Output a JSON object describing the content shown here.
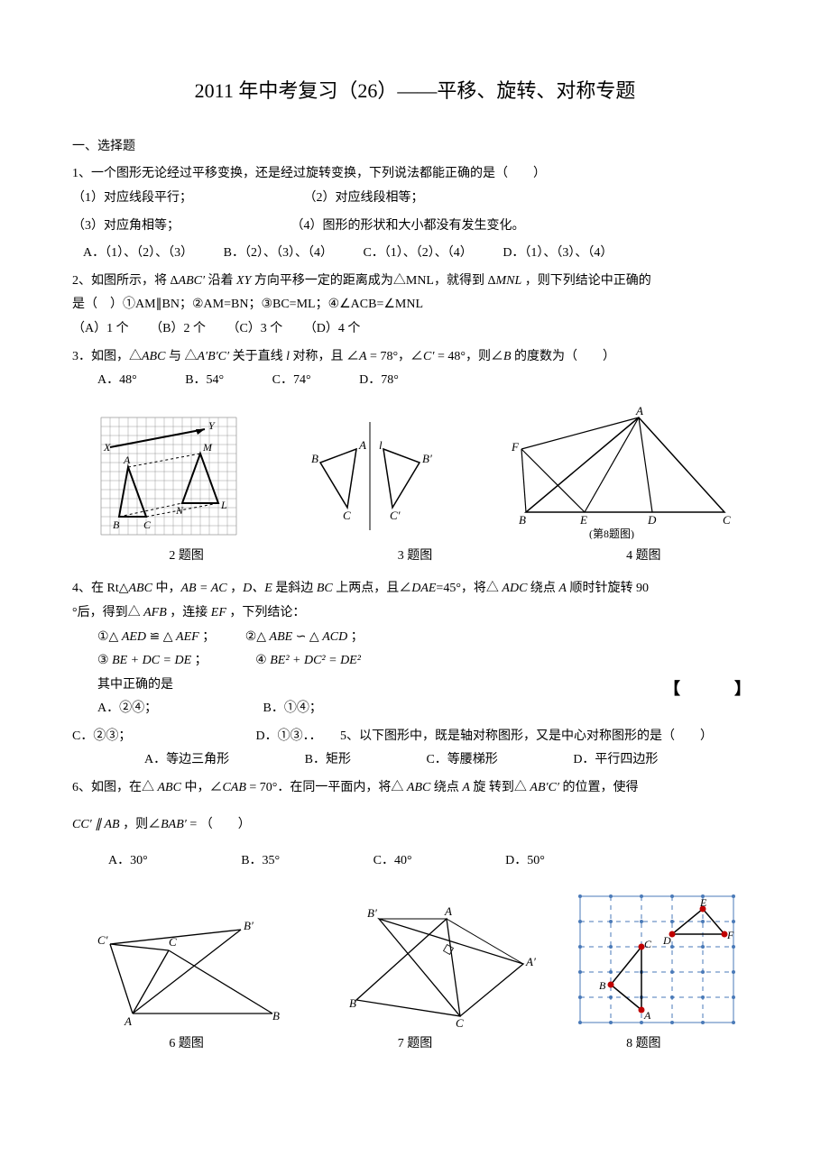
{
  "title": "2011 年中考复习（26）——平移、旋转、对称专题",
  "section1": "一、选择题",
  "q1": {
    "stem": "1、一个图形无论经过平移变换，还是经过旋转变换，下列说法都能正确的是（　　）",
    "s1": "（1）对应线段平行；",
    "s2": "（2）对应线段相等；",
    "s3": "（3）对应角相等；",
    "s4": "（4）图形的形状和大小都没有发生变化。",
    "a": "A．（1）、（2）、（3）",
    "b": "B．（2）、（3）、（4）",
    "c": "C．（1）、（2）、（4）",
    "d": "D．（1）、（3）、（4）"
  },
  "q2": {
    "line1": "2、如图所示，将 Δ",
    "abc1": "ABC′",
    "line1b": " 沿着 ",
    "xy": "XY",
    "line1c": " 方向平移一定的距离成为△MNL，就得到 Δ",
    "mnl": "MNL",
    "line1d": " ，则下列结论中正确的",
    "line2": "是（　）①AM∥BN；②AM=BN；③BC=ML；④∠ACB=∠MNL",
    "a": "（A）1 个",
    "b": "（B）2 个",
    "c": "（C）3 个",
    "d": "（D）4 个"
  },
  "q3": {
    "stem1": "3．如图，△",
    "abc": "ABC",
    "stem2": " 与 △",
    "abcp": "A′B′C′",
    "stem3": " 关于直线 ",
    "l": "l",
    "stem4": " 对称，且 ∠",
    "A": "A",
    "eq1": " = 78°，∠",
    "Cp": "C′",
    "eq2": " = 48°，则∠",
    "B": "B",
    "stem5": " 的度数为（　　）",
    "a": "A．48°",
    "b": "B．54°",
    "c": "C．74°",
    "d": "D．78°"
  },
  "cap2": "2 题图",
  "cap3": "3 题图",
  "cap4": "4 题图",
  "q4": {
    "l1a": "4、在 Rt△",
    "abc": "ABC",
    "l1b": " 中，",
    "eqn1": "AB = AC",
    "l1c": " ，",
    "de": "D、E",
    "l1d": " 是斜边 ",
    "bc": "BC",
    "l1e": " 上两点，且∠",
    "dae": "DAE",
    "l1f": "=45°，将△ ",
    "adc": "ADC",
    "l1g": " 绕点 ",
    "apt": "A",
    "l1h": " 顺时针旋转 90",
    "l2a": "°后，得到△ ",
    "afb": "AFB",
    "l2b": " ，连接 ",
    "ef": "EF",
    "l2c": " ，下列结论：",
    "s1a": "①△ ",
    "aed": "AED",
    "s1b": " ≌ △ ",
    "aef": "AEF",
    "s1c": " ；",
    "s2a": "②△ ",
    "abe": "ABE",
    "s2b": " ∽ △ ",
    "acd": "ACD",
    "s2c": " ；",
    "s3a": "③ ",
    "eq3": "BE + DC = DE",
    "s3b": " ；",
    "s4a": "④ ",
    "eq4": "BE² + DC² = DE²",
    "correct": "其中正确的是",
    "bracket": "【　　】",
    "a": "A．②④；",
    "b": "B．①④；",
    "c": "C．②③；",
    "d": "D．①③．．"
  },
  "q5": {
    "stem": "5、以下图形中，既是轴对称图形，又是中心对称图形的是（　　）",
    "a": "A．等边三角形",
    "b": "B．矩形",
    "c": "C．等腰梯形",
    "d": "D．平行四边形"
  },
  "q6": {
    "l1a": "6、如图，在△ ",
    "abc": "ABC",
    "l1b": " 中，∠",
    "cab": "CAB",
    "l1c": " = 70°．在同一平面内，将△ ",
    "abc2": "ABC",
    "l1d": " 绕点 ",
    "apt": "A",
    "l1e": " 旋 转到△ ",
    "abpcp": "AB′C′",
    "l1f": " 的位置，使得",
    "l2a": "CC′ ∥ AB",
    "l2b": " ，则∠",
    "bab": "BAB′",
    "l2c": " = （　　）",
    "a": "A．30°",
    "b": "B．35°",
    "c": "C．40°",
    "d": "D．50°"
  },
  "cap6": "6 题图",
  "cap7": "7 题图",
  "cap8": "8 题图",
  "fig8label": "(第8题图)",
  "figstyle": {
    "stroke": "#000000",
    "fill": "none",
    "gridColor": "#888888",
    "dashColor": "#666666",
    "dotColor": "#5b9bd5",
    "redColor": "#c00000"
  }
}
